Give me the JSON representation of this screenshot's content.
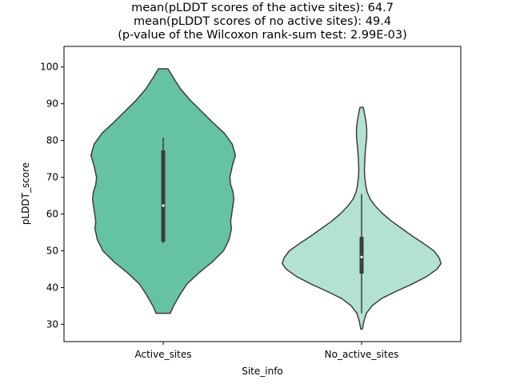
{
  "chart_data": {
    "type": "violin",
    "title_lines": [
      "mean(pLDDT scores of the active sites): 64.7",
      "mean(pLDDT scores of no active sites): 49.4",
      "(p-value of the Wilcoxon rank-sum test: 2.99E-03)"
    ],
    "xlabel": "Site_info",
    "ylabel": "pLDDT_score",
    "ylim": [
      25.3,
      105.6
    ],
    "yticks": [
      30,
      40,
      50,
      60,
      70,
      80,
      90,
      100
    ],
    "categories": [
      "Active_sites",
      "No_active_sites"
    ],
    "colors": {
      "Active_sites": "#66c2a5",
      "No_active_sites": "#b3e2d3",
      "edge": "#3d3d3d"
    },
    "violins": [
      {
        "name": "Active_sites",
        "range": [
          33.0,
          99.5
        ],
        "median": 62.3,
        "q1": 52.5,
        "q3": 77.3,
        "whisker_low": 52.0,
        "whisker_high": 80.8,
        "profile": [
          [
            33.0,
            0.09
          ],
          [
            35.0,
            0.13
          ],
          [
            38.0,
            0.21
          ],
          [
            41.0,
            0.3
          ],
          [
            44.0,
            0.45
          ],
          [
            47.0,
            0.62
          ],
          [
            50.0,
            0.76
          ],
          [
            53.0,
            0.83
          ],
          [
            56.0,
            0.86
          ],
          [
            58.0,
            0.85
          ],
          [
            61.0,
            0.87
          ],
          [
            64.0,
            0.89
          ],
          [
            66.0,
            0.88
          ],
          [
            68.0,
            0.85
          ],
          [
            70.0,
            0.84
          ],
          [
            73.0,
            0.87
          ],
          [
            76.0,
            0.91
          ],
          [
            79.0,
            0.87
          ],
          [
            82.0,
            0.77
          ],
          [
            85.0,
            0.62
          ],
          [
            88.0,
            0.48
          ],
          [
            91.0,
            0.34
          ],
          [
            94.0,
            0.22
          ],
          [
            97.0,
            0.13
          ],
          [
            99.5,
            0.06
          ]
        ]
      },
      {
        "name": "No_active_sites",
        "range": [
          28.7,
          89.0
        ],
        "median": 48.3,
        "q1": 43.8,
        "q3": 53.8,
        "whisker_low": 33.0,
        "whisker_high": 65.4,
        "profile": [
          [
            28.7,
            0.01
          ],
          [
            31.0,
            0.03
          ],
          [
            33.0,
            0.06
          ],
          [
            35.0,
            0.13
          ],
          [
            37.0,
            0.25
          ],
          [
            39.0,
            0.44
          ],
          [
            41.0,
            0.64
          ],
          [
            43.0,
            0.82
          ],
          [
            45.0,
            0.95
          ],
          [
            46.5,
            1.0
          ],
          [
            48.0,
            0.98
          ],
          [
            50.0,
            0.91
          ],
          [
            52.0,
            0.78
          ],
          [
            54.0,
            0.64
          ],
          [
            56.0,
            0.51
          ],
          [
            58.0,
            0.38
          ],
          [
            60.0,
            0.27
          ],
          [
            62.0,
            0.18
          ],
          [
            64.0,
            0.11
          ],
          [
            66.0,
            0.07
          ],
          [
            68.0,
            0.05
          ],
          [
            70.0,
            0.04
          ],
          [
            72.0,
            0.035
          ],
          [
            75.0,
            0.04
          ],
          [
            78.0,
            0.05
          ],
          [
            81.0,
            0.065
          ],
          [
            83.0,
            0.065
          ],
          [
            85.0,
            0.055
          ],
          [
            87.0,
            0.04
          ],
          [
            89.0,
            0.02
          ]
        ]
      }
    ]
  }
}
